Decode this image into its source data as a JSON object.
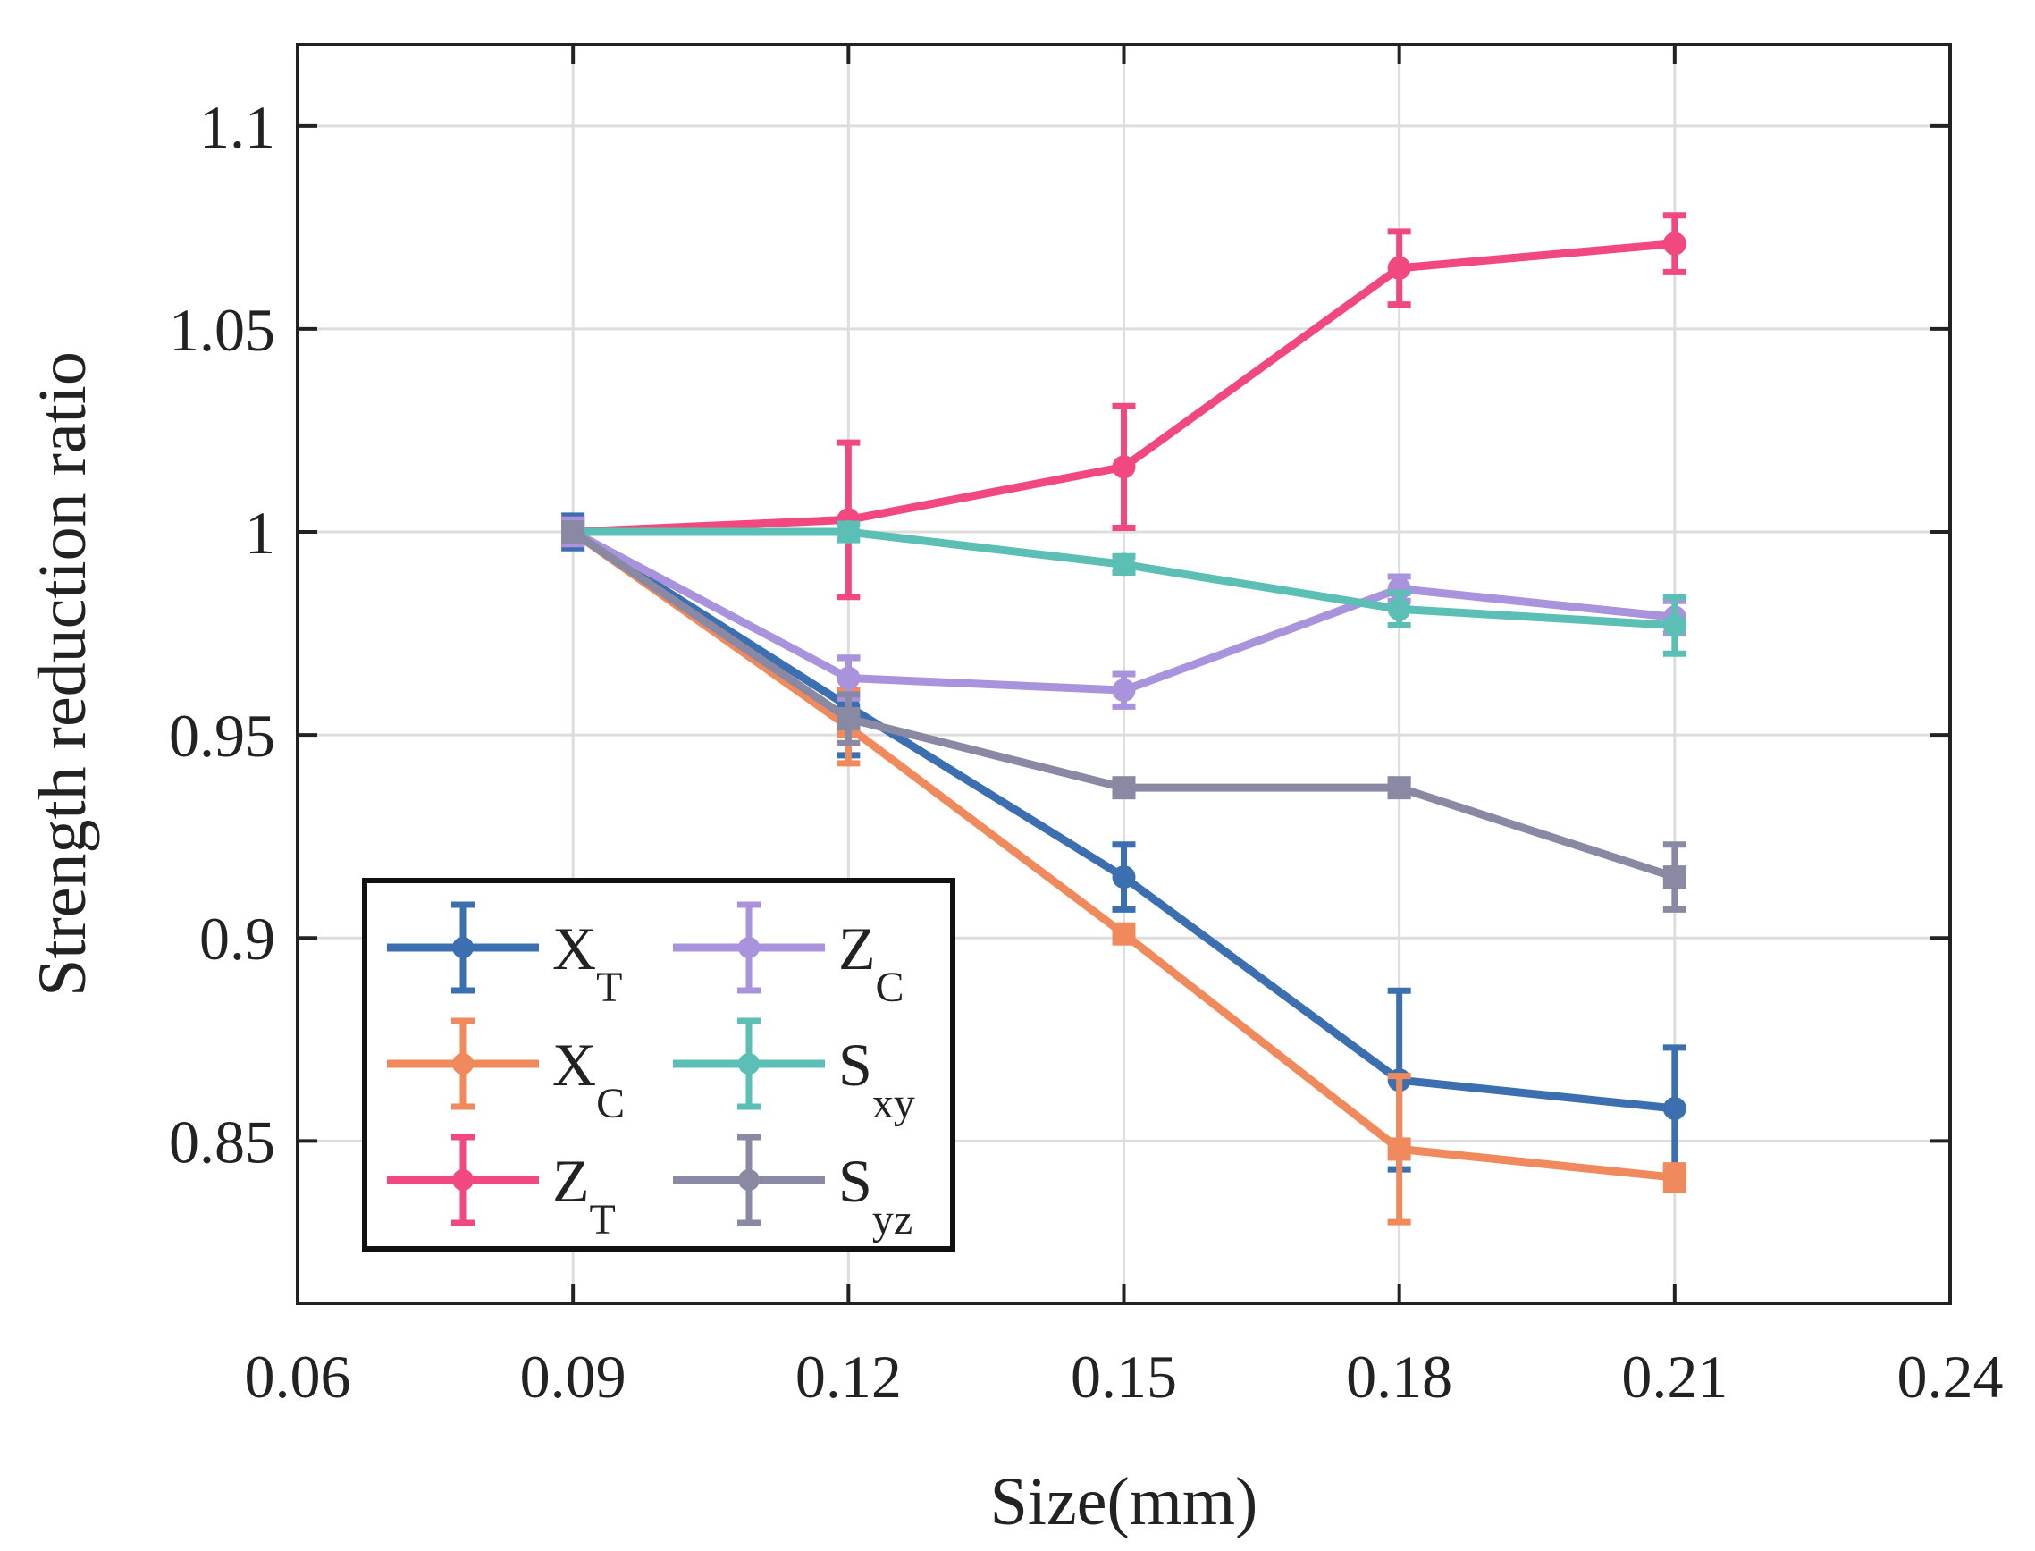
{
  "chart_data": {
    "type": "line",
    "title": "",
    "xlabel": "Size(mm)",
    "ylabel": "Strength reduction ratio",
    "xlim": [
      0.06,
      0.24
    ],
    "ylim": [
      0.81,
      1.12
    ],
    "xticks": [
      0.06,
      0.09,
      0.12,
      0.15,
      0.18,
      0.21,
      0.24
    ],
    "xtick_labels": [
      "0.06",
      "0.09",
      "0.12",
      "0.15",
      "0.18",
      "0.21",
      "0.24"
    ],
    "yticks": [
      0.85,
      0.9,
      0.95,
      1.0,
      1.05,
      1.1
    ],
    "ytick_labels": [
      "0.85",
      "0.9",
      "0.95",
      "1",
      "1.05",
      "1.1"
    ],
    "grid": true,
    "legend_position": "bottom-left",
    "x": [
      0.09,
      0.12,
      0.15,
      0.18,
      0.21
    ],
    "series": [
      {
        "name": "X_T",
        "label_main": "X",
        "label_sub": "T",
        "color": "#3B6FB0",
        "marker": "circle",
        "values": [
          1.0,
          0.957,
          0.915,
          0.865,
          0.858
        ],
        "errors": [
          0.004,
          0.012,
          0.008,
          0.022,
          0.015
        ]
      },
      {
        "name": "X_C",
        "label_main": "X",
        "label_sub": "C",
        "color": "#F08A5D",
        "marker": "square",
        "values": [
          1.0,
          0.952,
          0.901,
          0.848,
          0.841
        ],
        "errors": [
          0.003,
          0.009,
          0.002,
          0.018,
          0.003
        ]
      },
      {
        "name": "Z_T",
        "label_main": "Z",
        "label_sub": "T",
        "color": "#F0487F",
        "marker": "circle",
        "values": [
          1.0,
          1.003,
          1.016,
          1.065,
          1.071
        ],
        "errors": [
          0.003,
          0.019,
          0.015,
          0.009,
          0.007
        ]
      },
      {
        "name": "Z_C",
        "label_main": "Z",
        "label_sub": "C",
        "color": "#A893DC",
        "marker": "circle",
        "values": [
          1.0,
          0.964,
          0.961,
          0.986,
          0.979
        ],
        "errors": [
          0.003,
          0.005,
          0.004,
          0.003,
          0.004
        ]
      },
      {
        "name": "S_xy",
        "label_main": "S",
        "label_sub": "xy",
        "color": "#5BBFB5",
        "marker": "circle",
        "values": [
          1.0,
          1.0,
          0.992,
          0.981,
          0.977
        ],
        "errors": [
          0.002,
          0.002,
          0.002,
          0.004,
          0.007
        ]
      },
      {
        "name": "S_yz",
        "label_main": "S",
        "label_sub": "yz",
        "color": "#8A89A3",
        "marker": "square",
        "values": [
          1.0,
          0.954,
          0.937,
          0.937,
          0.915
        ],
        "errors": [
          0.002,
          0.006,
          0.002,
          0.002,
          0.008
        ]
      }
    ]
  }
}
